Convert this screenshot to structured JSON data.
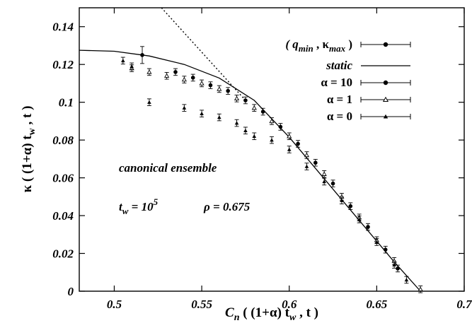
{
  "chart_data": {
    "type": "scatter",
    "title": "",
    "xlabel_parts": [
      "C",
      "n",
      " ( (1+α) t",
      "w",
      " , t )"
    ],
    "ylabel_parts": [
      "κ ( (1+α) t",
      "w",
      " , t )"
    ],
    "xlim": [
      0.48,
      0.7
    ],
    "ylim": [
      0,
      0.15
    ],
    "xticks": [
      0.5,
      0.55,
      0.6,
      0.65,
      0.7
    ],
    "xtick_labels": [
      "0.5",
      "0.55",
      "0.6",
      "0.65",
      "0.7"
    ],
    "yticks": [
      0,
      0.02,
      0.04,
      0.06,
      0.08,
      0.1,
      0.12,
      0.14
    ],
    "ytick_labels": [
      "0",
      "0.02",
      "0.04",
      "0.06",
      "0.08",
      "0.1",
      "0.12",
      "0.14"
    ],
    "grid": false,
    "legend_position": "top-right",
    "annotations": {
      "ensemble": "canonical ensemble",
      "tw_base": "t",
      "tw_sub": "w",
      "tw_eq": " = 10",
      "tw_exp": "5",
      "rho": "ρ = 0.675"
    },
    "series": [
      {
        "label_parts": [
          "( q",
          "min",
          " , κ",
          "max",
          " )"
        ],
        "marker": "circle-errorbar",
        "points": [
          {
            "x": 0.516,
            "y": 0.125,
            "err": 0.0045
          }
        ]
      },
      {
        "label": "static",
        "type": "solid-line",
        "points": [
          [
            0.48,
            0.1275
          ],
          [
            0.5,
            0.127
          ],
          [
            0.52,
            0.1245
          ],
          [
            0.54,
            0.12
          ],
          [
            0.56,
            0.1128
          ],
          [
            0.58,
            0.101
          ],
          [
            0.6,
            0.0815
          ],
          [
            0.62,
            0.0595
          ],
          [
            0.64,
            0.0375
          ],
          [
            0.66,
            0.0155
          ],
          [
            0.675,
            0.0
          ]
        ]
      },
      {
        "label": "",
        "type": "dotted-line",
        "points": [
          [
            0.527,
            0.15
          ],
          [
            0.575,
            0.101
          ]
        ]
      },
      {
        "label": "α = 10",
        "marker": "circle",
        "points": [
          [
            0.535,
            0.116
          ],
          [
            0.545,
            0.113
          ],
          [
            0.555,
            0.109
          ],
          [
            0.565,
            0.106
          ],
          [
            0.575,
            0.101
          ],
          [
            0.585,
            0.095
          ],
          [
            0.595,
            0.087
          ],
          [
            0.605,
            0.078
          ],
          [
            0.615,
            0.068
          ],
          [
            0.625,
            0.057
          ],
          [
            0.635,
            0.045
          ],
          [
            0.645,
            0.034
          ],
          [
            0.655,
            0.022
          ],
          [
            0.662,
            0.012
          ]
        ]
      },
      {
        "label": "α = 1",
        "marker": "triangle-open",
        "points": [
          [
            0.51,
            0.118
          ],
          [
            0.52,
            0.116
          ],
          [
            0.53,
            0.114
          ],
          [
            0.54,
            0.112
          ],
          [
            0.55,
            0.11
          ],
          [
            0.56,
            0.107
          ],
          [
            0.57,
            0.102
          ],
          [
            0.58,
            0.097
          ],
          [
            0.59,
            0.09
          ],
          [
            0.6,
            0.082
          ],
          [
            0.61,
            0.072
          ],
          [
            0.62,
            0.062
          ],
          [
            0.63,
            0.05
          ],
          [
            0.64,
            0.039
          ],
          [
            0.65,
            0.027
          ],
          [
            0.66,
            0.016
          ],
          [
            0.675,
            0.001
          ]
        ]
      },
      {
        "label": "α = 0",
        "marker": "triangle-filled",
        "points": [
          [
            0.505,
            0.122
          ],
          [
            0.51,
            0.119
          ],
          [
            0.52,
            0.1
          ],
          [
            0.54,
            0.097
          ],
          [
            0.55,
            0.094
          ],
          [
            0.56,
            0.092
          ],
          [
            0.57,
            0.089
          ],
          [
            0.575,
            0.085
          ],
          [
            0.58,
            0.082
          ],
          [
            0.59,
            0.08
          ],
          [
            0.6,
            0.075
          ],
          [
            0.61,
            0.066
          ],
          [
            0.62,
            0.058
          ],
          [
            0.63,
            0.048
          ],
          [
            0.64,
            0.038
          ],
          [
            0.65,
            0.026
          ],
          [
            0.66,
            0.014
          ],
          [
            0.667,
            0.006
          ]
        ]
      }
    ]
  }
}
